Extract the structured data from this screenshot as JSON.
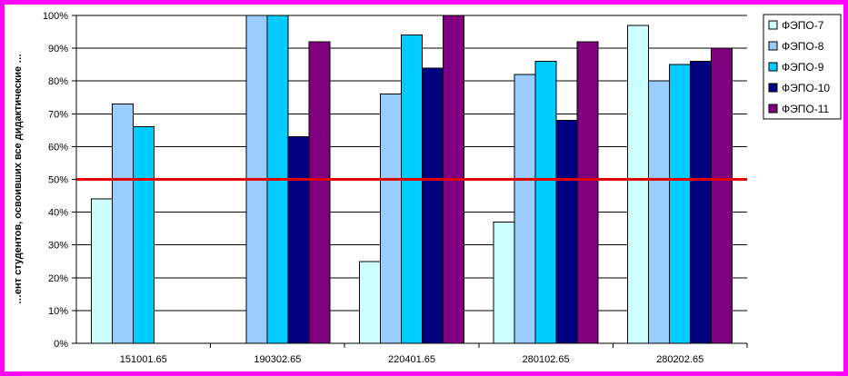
{
  "chart_data": {
    "type": "bar",
    "title": "",
    "xlabel": "",
    "ylabel": "…ент студентов, освоивших все дидактические …",
    "ylim": [
      0,
      100
    ],
    "yticks": [
      0,
      10,
      20,
      30,
      40,
      50,
      60,
      70,
      80,
      90,
      100
    ],
    "ytick_suffix": "%",
    "grid": true,
    "legend_position": "right",
    "categories": [
      "151001.65",
      "190302.65",
      "220401.65",
      "280102.65",
      "280202.65"
    ],
    "series": [
      {
        "name": "ФЭПО-7",
        "color": "#ccffff",
        "values": [
          44,
          null,
          25,
          37,
          97
        ]
      },
      {
        "name": "ФЭПО-8",
        "color": "#99ccff",
        "values": [
          73,
          100,
          76,
          82,
          80
        ]
      },
      {
        "name": "ФЭПО-9",
        "color": "#00ccff",
        "values": [
          66,
          100,
          94,
          86,
          85
        ]
      },
      {
        "name": "ФЭПО-10",
        "color": "#000080",
        "values": [
          null,
          63,
          84,
          68,
          86
        ]
      },
      {
        "name": "ФЭПО-11",
        "color": "#800080",
        "values": [
          null,
          92,
          100,
          92,
          90
        ]
      }
    ],
    "threshold": {
      "value": 50,
      "color": "#e00000"
    }
  }
}
